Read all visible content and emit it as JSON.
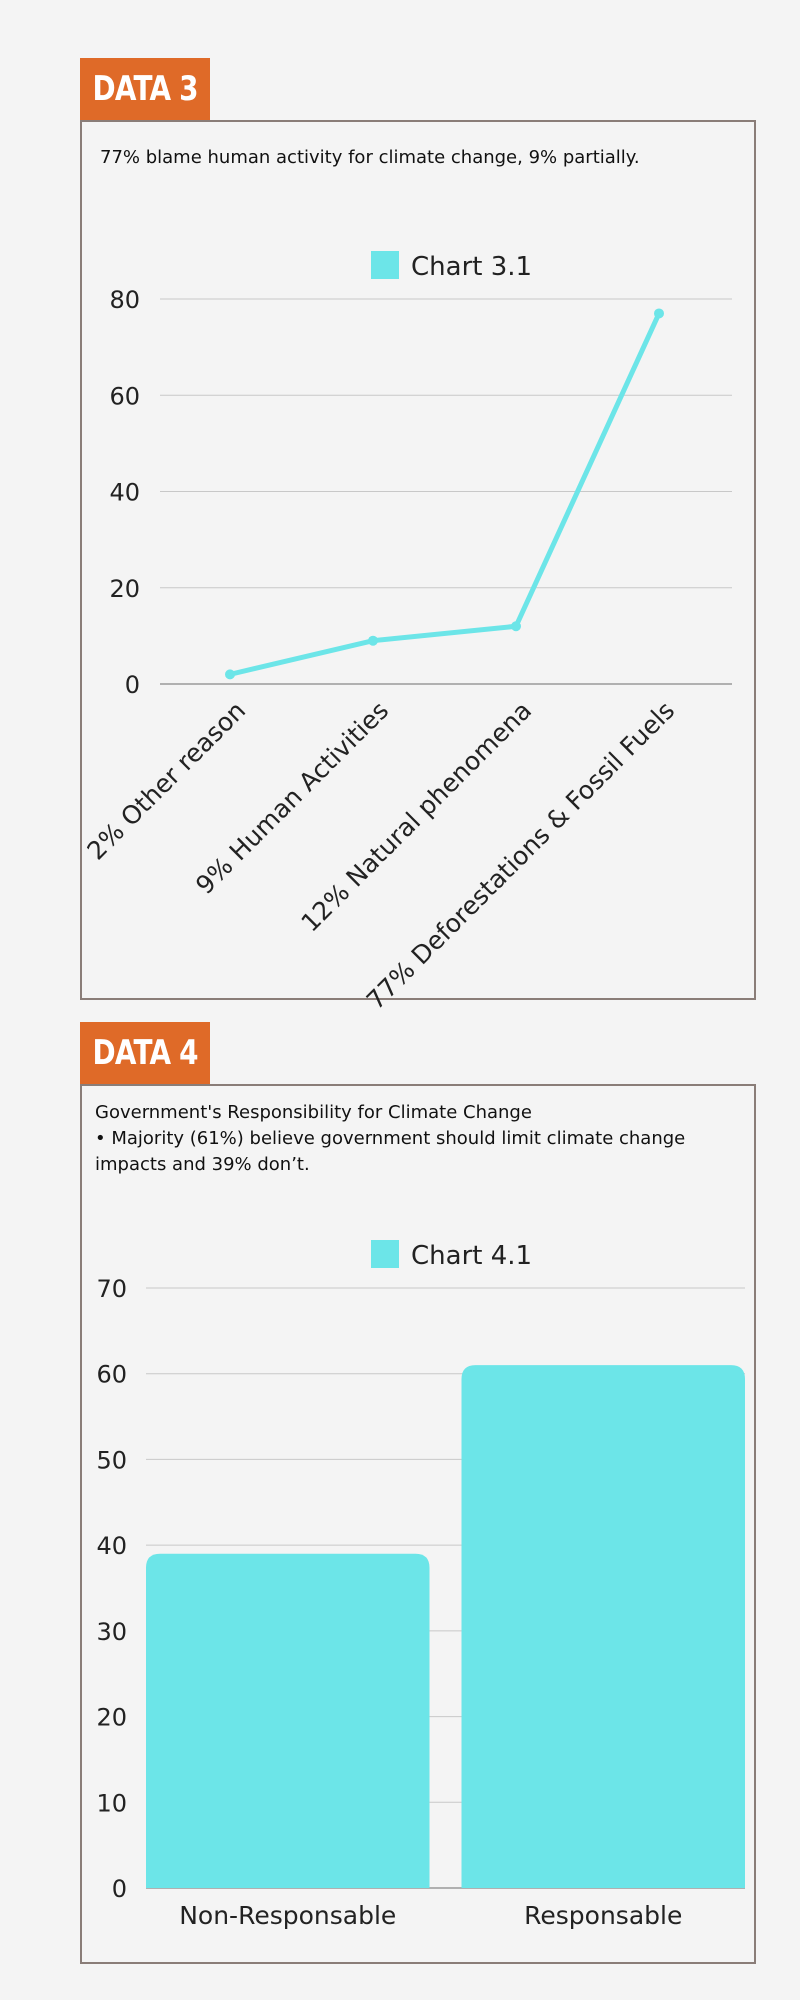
{
  "sections": [
    {
      "tag": "DATA 3",
      "description": "77% blame human activity for climate change, 9% partially."
    },
    {
      "tag": "DATA 4",
      "description": "Government's Responsibility for Climate Change\n• Majority (61%) believe government should limit climate change\n impacts and 39%  don’t."
    }
  ],
  "chart_data": [
    {
      "type": "line",
      "legend": "Chart 3.1",
      "categories": [
        "2% Other reason",
        "9% Human Activities",
        "12% Natural phenomena",
        "77% Deforestations & Fossil Fuels"
      ],
      "values": [
        2,
        9,
        12,
        77
      ],
      "ylim": [
        0,
        80
      ],
      "yticks": [
        0,
        20,
        40,
        60,
        80
      ],
      "color": "#6ce5e8",
      "grid": true,
      "legend_position": "top-center"
    },
    {
      "type": "bar",
      "legend": "Chart 4.1",
      "categories": [
        "Non-Responsable",
        "Responsable"
      ],
      "values": [
        39,
        61
      ],
      "ylim": [
        0,
        70
      ],
      "yticks": [
        0,
        10,
        20,
        30,
        40,
        50,
        60,
        70
      ],
      "color": "#6ce5e8",
      "grid": true,
      "legend_position": "top-center"
    }
  ]
}
